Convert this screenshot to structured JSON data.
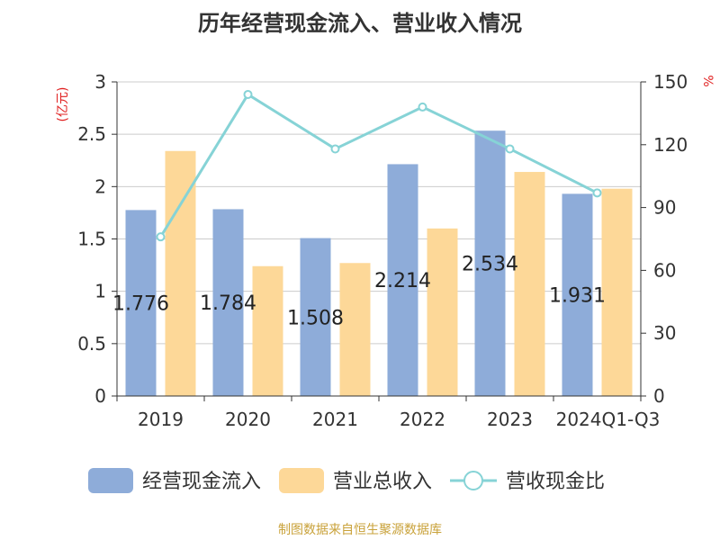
{
  "chart_data": {
    "type": "bar",
    "title": "历年经营现金流入、营业收入情况",
    "categories": [
      "2019",
      "2020",
      "2021",
      "2022",
      "2023",
      "2024Q1-Q3"
    ],
    "series": [
      {
        "name": "经营现金流入",
        "type": "bar",
        "axis": "left",
        "values": [
          1.776,
          1.784,
          1.508,
          2.214,
          2.534,
          1.931
        ],
        "color": "#8eacd9"
      },
      {
        "name": "营业总收入",
        "type": "bar",
        "axis": "left",
        "values": [
          2.34,
          1.24,
          1.27,
          1.6,
          2.14,
          1.98
        ],
        "color": "#fdd898"
      },
      {
        "name": "营收现金比",
        "type": "line",
        "axis": "right",
        "values": [
          76,
          144,
          118,
          138,
          118,
          97
        ],
        "color": "#86d3d6"
      }
    ],
    "data_labels": [
      "1.776",
      "1.784",
      "1.508",
      "2.214",
      "2.534",
      "1.931"
    ],
    "left_axis": {
      "unit": "(亿元)",
      "ylim": [
        0,
        3
      ],
      "ticks": [
        0,
        0.5,
        1,
        1.5,
        2,
        2.5,
        3
      ],
      "tick_labels": [
        "0",
        "0.5",
        "1",
        "1.5",
        "2",
        "2.5",
        "3"
      ]
    },
    "right_axis": {
      "unit": "%",
      "ylim": [
        0,
        150
      ],
      "ticks": [
        0,
        30,
        60,
        90,
        120,
        150
      ],
      "tick_labels": [
        "0",
        "30",
        "60",
        "90",
        "120",
        "150"
      ]
    },
    "grid": true,
    "legend_position": "bottom"
  },
  "source": "制图数据来自恒生聚源数据库"
}
